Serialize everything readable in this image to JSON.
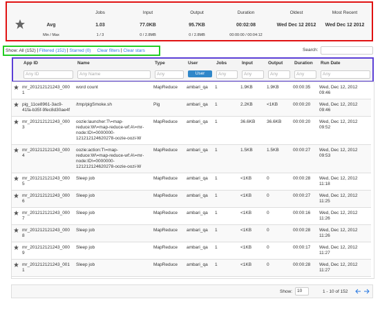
{
  "summary": {
    "columns": [
      "Jobs",
      "Input",
      "Output",
      "Duration",
      "Oldest",
      "Most Recent"
    ],
    "avg": {
      "label": "Avg",
      "values": [
        "1.03",
        "77.0KB",
        "95.7KB",
        "00:02:08",
        "Wed Dec 12 2012",
        "Wed Dec 12 2012"
      ]
    },
    "minmax": {
      "label": "Min / Max",
      "values": [
        "1 / 3",
        "0 / 2.8MB",
        "0 / 2.8MB",
        "00:00:00 / 00:04:12"
      ]
    }
  },
  "filters": {
    "show_label": "Show:",
    "all": "All (152)",
    "filtered": "Filtered (152)",
    "starred": "Starred (0)",
    "clear_filters": "Clear filters",
    "clear_stars": "Clear stars"
  },
  "search_label": "Search:",
  "table": {
    "columns": [
      "App ID",
      "Name",
      "Type",
      "User",
      "Jobs",
      "Input",
      "Output",
      "Duration",
      "Run Date"
    ],
    "filters": [
      "Any ID",
      "Any Name",
      "Any",
      "User",
      "Any",
      "Any",
      "Any",
      "Any",
      "Any"
    ],
    "rows": [
      [
        "mr_201212121243_0001",
        "word count",
        "MapReduce",
        "ambari_qa",
        "1",
        "1.9KB",
        "1.9KB",
        "00:00:35",
        "Wed, Dec 12, 2012 09:46"
      ],
      [
        "pig_11ce8961-3ac9-41fa-b35f-9fec8d30ae4f",
        "/tmp/pigSmoke.sh",
        "Pig",
        "ambari_qa",
        "1",
        "2.2KB",
        "<1KB",
        "00:00:20",
        "Wed, Dec 12, 2012 09:46"
      ],
      [
        "mr_201212121243_0003",
        "oozie:launcher:T\\=map-reduce:W\\=map-reduce-wf:A\\=mr-node:ID\\=0000000-121212124620278-oozie-oozi-W",
        "MapReduce",
        "ambari_qa",
        "1",
        "36.6KB",
        "36.6KB",
        "00:00:20",
        "Wed, Dec 12, 2012 09:52"
      ],
      [
        "mr_201212121243_0004",
        "oozie:action:T\\=map-reduce:W\\=map-reduce-wf:A\\=mr-node:ID\\=0000000-121212124620278-oozie-oozi-W",
        "MapReduce",
        "ambari_qa",
        "1",
        "1.5KB",
        "1.5KB",
        "00:00:27",
        "Wed, Dec 12, 2012 09:53"
      ],
      [
        "mr_201212121243_0005",
        "Sleep job",
        "MapReduce",
        "ambari_qa",
        "1",
        "<1KB",
        "0",
        "00:00:28",
        "Wed, Dec 12, 2012 11:18"
      ],
      [
        "mr_201212121243_0006",
        "Sleep job",
        "MapReduce",
        "ambari_qa",
        "1",
        "<1KB",
        "0",
        "00:00:27",
        "Wed, Dec 12, 2012 11:25"
      ],
      [
        "mr_201212121243_0007",
        "Sleep job",
        "MapReduce",
        "ambari_qa",
        "1",
        "<1KB",
        "0",
        "00:00:16",
        "Wed, Dec 12, 2012 11:26"
      ],
      [
        "mr_201212121243_0008",
        "Sleep job",
        "MapReduce",
        "ambari_qa",
        "1",
        "<1KB",
        "0",
        "00:00:28",
        "Wed, Dec 12, 2012 11:26"
      ],
      [
        "mr_201212121243_0009",
        "Sleep job",
        "MapReduce",
        "ambari_qa",
        "1",
        "<1KB",
        "0",
        "00:00:17",
        "Wed, Dec 12, 2012 11:27"
      ],
      [
        "mr_201212121243_0011",
        "Sleep job",
        "MapReduce",
        "ambari_qa",
        "1",
        "<1KB",
        "0",
        "00:00:28",
        "Wed, Dec 12, 2012 11:27"
      ]
    ]
  },
  "pagination": {
    "show_label": "Show:",
    "page_size": "10",
    "range": "1 - 10 of 152"
  }
}
